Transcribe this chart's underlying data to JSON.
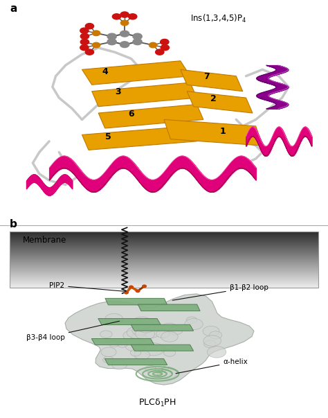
{
  "panel_a_label": "a",
  "panel_b_label": "b",
  "ins_label": "Ins(1,3,4,5)P",
  "ins_subscript": "4",
  "beta_strand_color": "#E8A000",
  "beta_strand_edge": "#C07800",
  "helix_color": "#E0007A",
  "purple_helix_color": "#8B008B",
  "loop_color": "#C8C8C8",
  "atom_red": "#CC1111",
  "atom_gray": "#888888",
  "membrane_label": "Membrane",
  "pip2_label": "PIP2",
  "b1b2_label": "β1-β2 loop",
  "b3b4_label": "β3-β4 loop",
  "alpha_helix_label": "α-helix",
  "plc_label": "PLCδ",
  "plc_subscript": "1",
  "plc_suffix": "PH",
  "bg_color": "#FFFFFF",
  "protein_b_color": "#D0D4D0",
  "beta_sheet_b_color": "#7DAF7D",
  "separator_color": "#AAAAAA",
  "annotation_color": "#111111"
}
